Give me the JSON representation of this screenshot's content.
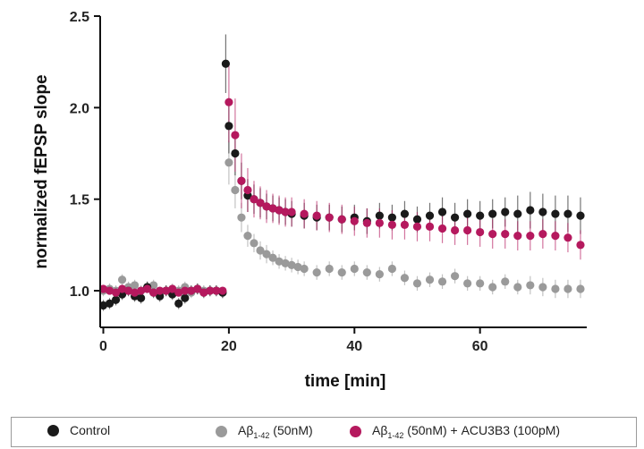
{
  "chart_data": {
    "type": "scatter",
    "xlabel": "time [min]",
    "ylabel": "normalized fEPSP slope",
    "xlim": [
      -0.5,
      77
    ],
    "ylim": [
      0.8,
      2.5
    ],
    "xticks": [
      0,
      20,
      40,
      60
    ],
    "yticks": [
      1.0,
      1.5,
      2.0,
      2.5
    ],
    "xtick_labels": [
      "0",
      "20",
      "40",
      "60"
    ],
    "ytick_labels": [
      "1.0",
      "1.5",
      "2.0",
      "2.5"
    ],
    "error_bars": true,
    "legend_placement": "bottom",
    "series": [
      {
        "name": "Control",
        "color": "#1a1a1a",
        "x": [
          0,
          1,
          2,
          3,
          4,
          5,
          6,
          7,
          8,
          9,
          10,
          11,
          12,
          13,
          14,
          15,
          16,
          17,
          18,
          19,
          19.5,
          20,
          21,
          22,
          23,
          24,
          25,
          26,
          27,
          28,
          29,
          30,
          32,
          34,
          36,
          38,
          40,
          42,
          44,
          46,
          48,
          50,
          52,
          54,
          56,
          58,
          60,
          62,
          64,
          66,
          68,
          70,
          72,
          74,
          76
        ],
        "y": [
          0.92,
          0.93,
          0.95,
          0.98,
          1.0,
          0.97,
          0.96,
          1.02,
          0.99,
          0.97,
          1.0,
          0.98,
          0.93,
          0.96,
          1.0,
          1.01,
          0.99,
          1.0,
          1.0,
          0.99,
          2.24,
          1.9,
          1.75,
          1.6,
          1.52,
          1.5,
          1.48,
          1.46,
          1.45,
          1.44,
          1.43,
          1.42,
          1.41,
          1.4,
          1.4,
          1.39,
          1.4,
          1.38,
          1.41,
          1.4,
          1.42,
          1.39,
          1.41,
          1.43,
          1.4,
          1.42,
          1.41,
          1.42,
          1.43,
          1.42,
          1.44,
          1.43,
          1.42,
          1.42,
          1.41
        ],
        "err": [
          0.03,
          0.03,
          0.03,
          0.03,
          0.03,
          0.03,
          0.03,
          0.03,
          0.03,
          0.03,
          0.03,
          0.03,
          0.03,
          0.03,
          0.03,
          0.03,
          0.03,
          0.03,
          0.03,
          0.03,
          0.16,
          0.15,
          0.12,
          0.1,
          0.09,
          0.08,
          0.08,
          0.07,
          0.07,
          0.07,
          0.07,
          0.07,
          0.07,
          0.07,
          0.07,
          0.07,
          0.07,
          0.07,
          0.07,
          0.07,
          0.07,
          0.07,
          0.07,
          0.08,
          0.08,
          0.08,
          0.08,
          0.08,
          0.08,
          0.1,
          0.1,
          0.1,
          0.1,
          0.1,
          0.1
        ]
      },
      {
        "name": "Aβ1-42 (50nM)",
        "color": "#9a9a9a",
        "x": [
          0,
          1,
          2,
          3,
          4,
          5,
          6,
          7,
          8,
          9,
          10,
          11,
          12,
          13,
          14,
          15,
          16,
          17,
          18,
          19,
          20,
          21,
          22,
          23,
          24,
          25,
          26,
          27,
          28,
          29,
          30,
          31,
          32,
          34,
          36,
          38,
          40,
          42,
          44,
          46,
          48,
          50,
          52,
          54,
          56,
          58,
          60,
          62,
          64,
          66,
          68,
          70,
          72,
          74,
          76
        ],
        "y": [
          1.0,
          1.01,
          1.0,
          1.06,
          1.02,
          1.03,
          1.0,
          1.02,
          1.03,
          0.99,
          1.0,
          1.01,
          1.0,
          1.02,
          0.99,
          1.01,
          1.0,
          1.0,
          1.0,
          0.99,
          1.7,
          1.55,
          1.4,
          1.3,
          1.26,
          1.22,
          1.2,
          1.18,
          1.16,
          1.15,
          1.14,
          1.13,
          1.12,
          1.1,
          1.12,
          1.1,
          1.12,
          1.1,
          1.09,
          1.12,
          1.07,
          1.04,
          1.06,
          1.05,
          1.08,
          1.04,
          1.04,
          1.02,
          1.05,
          1.02,
          1.03,
          1.02,
          1.01,
          1.01,
          1.01
        ],
        "err": [
          0.03,
          0.03,
          0.03,
          0.03,
          0.03,
          0.03,
          0.03,
          0.03,
          0.03,
          0.03,
          0.03,
          0.03,
          0.03,
          0.03,
          0.03,
          0.03,
          0.03,
          0.03,
          0.03,
          0.03,
          0.12,
          0.1,
          0.08,
          0.06,
          0.05,
          0.05,
          0.05,
          0.04,
          0.04,
          0.04,
          0.04,
          0.04,
          0.04,
          0.04,
          0.04,
          0.04,
          0.04,
          0.04,
          0.04,
          0.04,
          0.04,
          0.04,
          0.04,
          0.04,
          0.04,
          0.04,
          0.04,
          0.04,
          0.04,
          0.04,
          0.05,
          0.05,
          0.05,
          0.05,
          0.05
        ]
      },
      {
        "name": "Aβ1-42 (50nM) + ACU3B3 (100pM)",
        "color": "#b5195e",
        "x": [
          0,
          1,
          2,
          3,
          4,
          5,
          6,
          7,
          8,
          9,
          10,
          11,
          12,
          13,
          14,
          15,
          16,
          17,
          18,
          19,
          20,
          21,
          22,
          23,
          24,
          25,
          26,
          27,
          28,
          29,
          30,
          32,
          34,
          36,
          38,
          40,
          42,
          44,
          46,
          48,
          50,
          52,
          54,
          56,
          58,
          60,
          62,
          64,
          66,
          68,
          70,
          72,
          74,
          76
        ],
        "y": [
          1.01,
          1.0,
          0.99,
          1.01,
          1.0,
          0.99,
          1.0,
          1.01,
          0.99,
          1.0,
          1.0,
          1.01,
          0.99,
          1.0,
          1.0,
          1.01,
          0.99,
          1.0,
          1.0,
          1.0,
          2.03,
          1.85,
          1.6,
          1.55,
          1.5,
          1.48,
          1.46,
          1.45,
          1.44,
          1.43,
          1.43,
          1.42,
          1.41,
          1.4,
          1.39,
          1.38,
          1.37,
          1.37,
          1.36,
          1.36,
          1.35,
          1.35,
          1.34,
          1.33,
          1.33,
          1.32,
          1.31,
          1.31,
          1.3,
          1.3,
          1.31,
          1.3,
          1.29,
          1.25
        ],
        "err": [
          0.02,
          0.02,
          0.02,
          0.02,
          0.02,
          0.02,
          0.02,
          0.02,
          0.02,
          0.02,
          0.02,
          0.02,
          0.02,
          0.02,
          0.02,
          0.02,
          0.02,
          0.02,
          0.02,
          0.02,
          0.22,
          0.2,
          0.15,
          0.12,
          0.1,
          0.09,
          0.09,
          0.08,
          0.08,
          0.08,
          0.08,
          0.08,
          0.08,
          0.08,
          0.08,
          0.08,
          0.08,
          0.08,
          0.08,
          0.08,
          0.08,
          0.08,
          0.08,
          0.08,
          0.08,
          0.08,
          0.08,
          0.08,
          0.08,
          0.08,
          0.08,
          0.08,
          0.08,
          0.08
        ]
      }
    ]
  },
  "legend": {
    "items": [
      {
        "main": "Control",
        "sub": "",
        "rest": "",
        "color": "#1a1a1a"
      },
      {
        "main": "Aβ",
        "sub": "1-42",
        "rest": " (50nM)",
        "color": "#9a9a9a"
      },
      {
        "main": "Aβ",
        "sub": "1-42",
        "rest": " (50nM) + ACU3B3 (100pM)",
        "color": "#b5195e"
      }
    ]
  }
}
